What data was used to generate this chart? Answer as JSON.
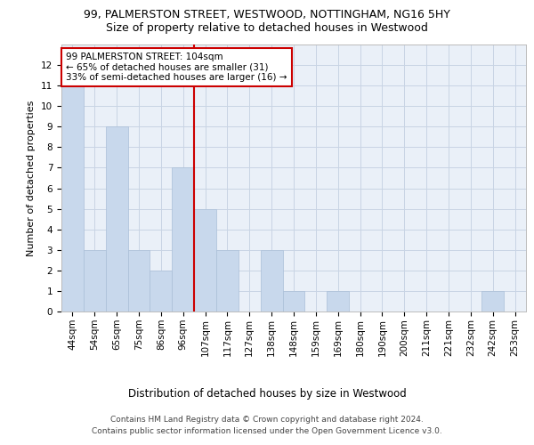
{
  "title_line1": "99, PALMERSTON STREET, WESTWOOD, NOTTINGHAM, NG16 5HY",
  "title_line2": "Size of property relative to detached houses in Westwood",
  "xlabel": "Distribution of detached houses by size in Westwood",
  "ylabel": "Number of detached properties",
  "categories": [
    "44sqm",
    "54sqm",
    "65sqm",
    "75sqm",
    "86sqm",
    "96sqm",
    "107sqm",
    "117sqm",
    "127sqm",
    "138sqm",
    "148sqm",
    "159sqm",
    "169sqm",
    "180sqm",
    "190sqm",
    "200sqm",
    "211sqm",
    "221sqm",
    "232sqm",
    "242sqm",
    "253sqm"
  ],
  "values": [
    11,
    3,
    9,
    3,
    2,
    7,
    5,
    3,
    0,
    3,
    1,
    0,
    1,
    0,
    0,
    0,
    0,
    0,
    0,
    1,
    0
  ],
  "bar_color": "#c8d8ec",
  "bar_edge_color": "#aabfd8",
  "vline_color": "#cc0000",
  "vline_x_index": 5.5,
  "annotation_text": "99 PALMERSTON STREET: 104sqm\n← 65% of detached houses are smaller (31)\n33% of semi-detached houses are larger (16) →",
  "annotation_box_fc": "white",
  "annotation_box_ec": "#cc0000",
  "ylim_max": 13,
  "yticks": [
    0,
    1,
    2,
    3,
    4,
    5,
    6,
    7,
    8,
    9,
    10,
    11,
    12,
    13
  ],
  "grid_color": "#c8d4e4",
  "footer_line1": "Contains HM Land Registry data © Crown copyright and database right 2024.",
  "footer_line2": "Contains public sector information licensed under the Open Government Licence v3.0.",
  "bg_color": "white",
  "axes_bg": "#eaf0f8",
  "title1_fontsize": 9,
  "title2_fontsize": 9,
  "ylabel_fontsize": 8,
  "xlabel_fontsize": 8.5,
  "tick_fontsize": 7.5,
  "annotation_fontsize": 7.5,
  "footer_fontsize": 6.5
}
